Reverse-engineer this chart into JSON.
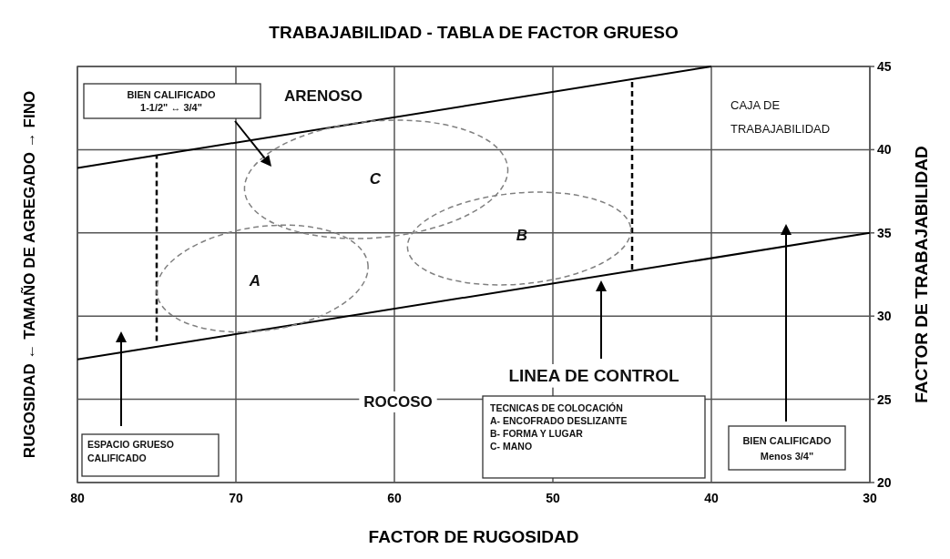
{
  "chart_data": {
    "type": "line",
    "title": "TRABAJABILIDAD - TABLA DE FACTOR GRUESO",
    "xlabel": "FACTOR DE RUGOSIDAD",
    "ylabel": "RUGOSIDAD ← TAMAÑO DE AGREGADO → FINO",
    "y2label": "FACTOR DE TRABAJABILIDAD",
    "xlim": [
      80,
      30
    ],
    "xticks": [
      80,
      70,
      60,
      50,
      40,
      30
    ],
    "ylim": [
      20,
      45
    ],
    "yticks": [
      20,
      25,
      30,
      35,
      40,
      45
    ],
    "grid": true,
    "marker": "none",
    "series": [
      {
        "color": "#000000",
        "line_style": "solid",
        "x": [
          80,
          40
        ],
        "values": [
          38.9,
          45
        ]
      },
      {
        "color": "#000000",
        "line_style": "solid",
        "x": [
          80,
          30
        ],
        "values": [
          27.4,
          35
        ]
      },
      {
        "color": "#000000",
        "line_style": "dashed",
        "x": [
          75,
          75
        ],
        "values": [
          28.5,
          39.7
        ]
      },
      {
        "color": "#000000",
        "line_style": "dashed",
        "x": [
          45,
          45
        ],
        "values": [
          32.8,
          44.2
        ]
      }
    ],
    "annotations": [
      "BIEN CALIFICADO\n1-1/2\" ↔ 3/4\"",
      "ARENOSO",
      "CAJA DE\nTRABAJABILIDAD",
      "LINEA DE CONTROL",
      "ROCOSO",
      "ESPACIO GRUESO\nCALIFICADO",
      "TECNICAS DE COLOCACIÓN\nA- ENCOFRADO DESLIZANTE\nB- FORMA Y LUGAR\nC- MANO",
      "BIEN CALIFICADO\nMenos 3/4\"",
      "A",
      "C",
      "B"
    ]
  }
}
